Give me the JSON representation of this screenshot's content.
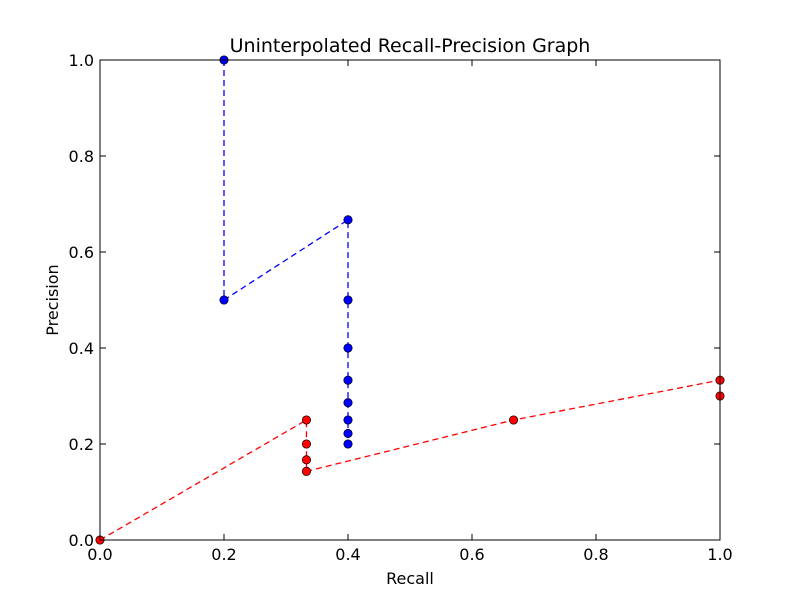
{
  "chart_data": {
    "type": "line",
    "title": "Uninterpolated Recall-Precision Graph",
    "xlabel": "Recall",
    "ylabel": "Precision",
    "xlim": [
      0.0,
      1.0
    ],
    "ylim": [
      0.0,
      1.0
    ],
    "xticks": [
      "0.0",
      "0.2",
      "0.4",
      "0.6",
      "0.8",
      "1.0"
    ],
    "yticks": [
      "0.0",
      "0.2",
      "0.4",
      "0.6",
      "0.8",
      "1.0"
    ],
    "grid": false,
    "line_style": "dashed",
    "marker": "circle",
    "series": [
      {
        "color": "#0000ff",
        "points": [
          [
            0.2,
            1.0
          ],
          [
            0.2,
            0.5
          ],
          [
            0.4,
            0.667
          ],
          [
            0.4,
            0.5
          ],
          [
            0.4,
            0.4
          ],
          [
            0.4,
            0.333
          ],
          [
            0.4,
            0.286
          ],
          [
            0.4,
            0.25
          ],
          [
            0.4,
            0.222
          ],
          [
            0.4,
            0.2
          ]
        ]
      },
      {
        "color": "#ff0000",
        "points": [
          [
            0.0,
            0.0
          ],
          [
            0.333,
            0.25
          ],
          [
            0.333,
            0.2
          ],
          [
            0.333,
            0.167
          ],
          [
            0.333,
            0.143
          ],
          [
            0.667,
            0.25
          ],
          [
            1.0,
            0.333
          ],
          [
            1.0,
            0.3
          ]
        ]
      }
    ]
  }
}
